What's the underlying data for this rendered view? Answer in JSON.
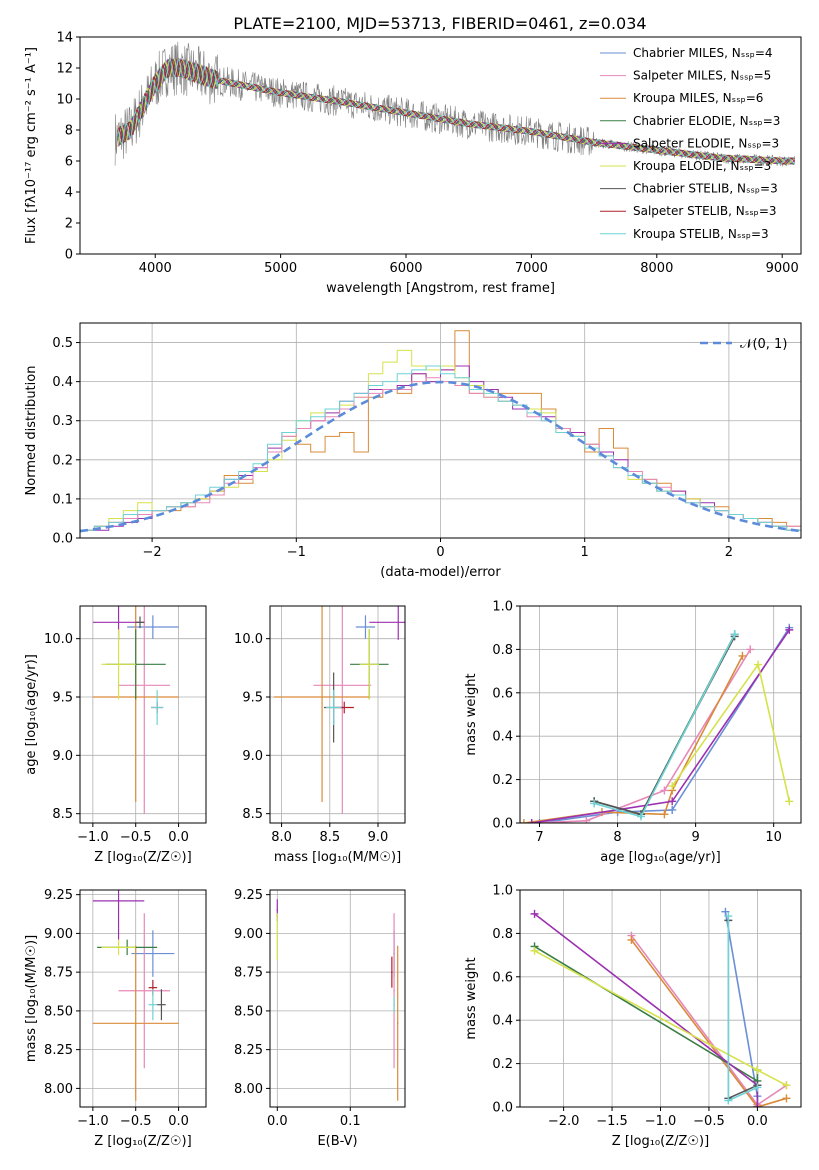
{
  "figure": {
    "title": "PLATE=2100, MJD=53713, FIBERID=0461, z=0.034"
  },
  "series_colors": {
    "Chabrier MILES": "#6a8fd6",
    "Salpeter MILES": "#e688b8",
    "Kroupa MILES": "#d98b3a",
    "Chabrier ELODIE": "#3a7d44",
    "Salpeter ELODIE": "#9b30b0",
    "Kroupa ELODIE": "#d6e24a",
    "Chabrier STELIB": "#555555",
    "Salpeter STELIB": "#b0202a",
    "Kroupa STELIB": "#6fd2d6"
  },
  "chart_data": [
    {
      "id": "spectrum",
      "type": "line",
      "title": "PLATE=2100, MJD=53713, FIBERID=0461, z=0.034",
      "xlabel": "wavelength [Angstrom, rest frame]",
      "ylabel": "Flux [fλ10⁻¹⁷ erg cm⁻² s⁻¹ A⁻¹]",
      "xlim": [
        3400,
        9150
      ],
      "ylim": [
        0,
        14
      ],
      "xticks": [
        4000,
        5000,
        6000,
        7000,
        8000,
        9000
      ],
      "yticks": [
        0,
        2,
        4,
        6,
        8,
        10,
        12,
        14
      ],
      "legend_position": "top-right",
      "legend": [
        "Chabrier MILES, N_SSP=4",
        "Salpeter MILES, N_SSP=5",
        "Kroupa MILES, N_SSP=6",
        "Chabrier ELODIE, N_SSP=3",
        "Salpeter ELODIE, N_SSP=3",
        "Kroupa ELODIE, N_SSP=3",
        "Chabrier STELIB, N_SSP=3",
        "Salpeter STELIB, N_SSP=3",
        "Kroupa STELIB, N_SSP=3"
      ],
      "model_trend": {
        "x": [
          3700,
          3800,
          3900,
          4000,
          4100,
          4200,
          4500,
          5000,
          5500,
          6000,
          6500,
          7000,
          7500,
          8000,
          8500,
          9000
        ],
        "y": [
          7.5,
          8.0,
          9.5,
          11.0,
          12.0,
          12.0,
          11.2,
          10.4,
          9.8,
          9.1,
          8.4,
          7.9,
          7.2,
          6.7,
          6.2,
          6.0
        ]
      }
    },
    {
      "id": "residuals",
      "type": "bar",
      "xlabel": "(data-model)/error",
      "ylabel": "Normed distribution",
      "xlim": [
        -2.5,
        2.5
      ],
      "ylim": [
        0,
        0.55
      ],
      "xticks": [
        -2,
        -1,
        0,
        1,
        2
      ],
      "yticks": [
        0.0,
        0.1,
        0.2,
        0.3,
        0.4,
        0.5
      ],
      "grid": true,
      "legend_position": "top-right",
      "legend": [
        "𝒩(0, 1)"
      ],
      "bin_edges": [
        -2.5,
        -2.4,
        -2.3,
        -2.2,
        -2.1,
        -2.0,
        -1.9,
        -1.8,
        -1.7,
        -1.6,
        -1.5,
        -1.4,
        -1.3,
        -1.2,
        -1.1,
        -1.0,
        -0.9,
        -0.8,
        -0.7,
        -0.6,
        -0.5,
        -0.4,
        -0.3,
        -0.2,
        -0.1,
        0.0,
        0.1,
        0.2,
        0.3,
        0.4,
        0.5,
        0.6,
        0.7,
        0.8,
        0.9,
        1.0,
        1.1,
        1.2,
        1.3,
        1.4,
        1.5,
        1.6,
        1.7,
        1.8,
        1.9,
        2.0,
        2.1,
        2.2,
        2.3,
        2.4,
        2.5
      ],
      "series": [
        {
          "name": "Kroupa MILES",
          "values": [
            0.02,
            0.03,
            0.04,
            0.05,
            0.06,
            0.07,
            0.07,
            0.08,
            0.1,
            0.12,
            0.16,
            0.14,
            0.17,
            0.22,
            0.26,
            0.24,
            0.22,
            0.26,
            0.27,
            0.22,
            0.36,
            0.38,
            0.37,
            0.42,
            0.4,
            0.43,
            0.53,
            0.37,
            0.38,
            0.37,
            0.37,
            0.37,
            0.33,
            0.28,
            0.27,
            0.22,
            0.28,
            0.23,
            0.16,
            0.15,
            0.14,
            0.12,
            0.1,
            0.08,
            0.08,
            0.06,
            0.05,
            0.05,
            0.04,
            0.03
          ]
        },
        {
          "name": "Salpeter ELODIE",
          "values": [
            0.02,
            0.02,
            0.03,
            0.04,
            0.05,
            0.07,
            0.08,
            0.09,
            0.1,
            0.12,
            0.15,
            0.16,
            0.18,
            0.23,
            0.27,
            0.28,
            0.3,
            0.32,
            0.35,
            0.37,
            0.38,
            0.38,
            0.39,
            0.42,
            0.4,
            0.43,
            0.44,
            0.4,
            0.38,
            0.36,
            0.33,
            0.33,
            0.31,
            0.28,
            0.27,
            0.24,
            0.22,
            0.2,
            0.16,
            0.14,
            0.12,
            0.12,
            0.1,
            0.09,
            0.07,
            0.06,
            0.05,
            0.04,
            0.03,
            0.02
          ]
        },
        {
          "name": "Kroupa ELODIE",
          "values": [
            0.02,
            0.03,
            0.05,
            0.07,
            0.09,
            0.07,
            0.08,
            0.09,
            0.1,
            0.12,
            0.13,
            0.15,
            0.17,
            0.2,
            0.25,
            0.3,
            0.32,
            0.33,
            0.34,
            0.36,
            0.42,
            0.45,
            0.48,
            0.44,
            0.43,
            0.44,
            0.41,
            0.39,
            0.36,
            0.35,
            0.34,
            0.33,
            0.32,
            0.27,
            0.26,
            0.24,
            0.21,
            0.18,
            0.15,
            0.14,
            0.12,
            0.11,
            0.1,
            0.08,
            0.07,
            0.06,
            0.05,
            0.04,
            0.03,
            0.02
          ]
        },
        {
          "name": "Salpeter MILES",
          "values": [
            0.02,
            0.03,
            0.04,
            0.05,
            0.06,
            0.07,
            0.08,
            0.08,
            0.09,
            0.11,
            0.14,
            0.15,
            0.18,
            0.22,
            0.26,
            0.28,
            0.3,
            0.31,
            0.33,
            0.36,
            0.37,
            0.38,
            0.38,
            0.4,
            0.41,
            0.4,
            0.39,
            0.37,
            0.36,
            0.35,
            0.34,
            0.31,
            0.3,
            0.28,
            0.26,
            0.24,
            0.21,
            0.18,
            0.17,
            0.15,
            0.13,
            0.11,
            0.09,
            0.08,
            0.07,
            0.06,
            0.05,
            0.04,
            0.03,
            0.03
          ]
        },
        {
          "name": "Kroupa STELIB",
          "values": [
            0.02,
            0.03,
            0.04,
            0.06,
            0.07,
            0.07,
            0.08,
            0.09,
            0.11,
            0.13,
            0.15,
            0.17,
            0.19,
            0.24,
            0.27,
            0.3,
            0.31,
            0.33,
            0.35,
            0.37,
            0.39,
            0.4,
            0.42,
            0.43,
            0.44,
            0.42,
            0.41,
            0.38,
            0.37,
            0.35,
            0.34,
            0.32,
            0.3,
            0.27,
            0.26,
            0.23,
            0.21,
            0.18,
            0.16,
            0.14,
            0.12,
            0.11,
            0.09,
            0.08,
            0.07,
            0.06,
            0.05,
            0.04,
            0.03,
            0.02
          ]
        }
      ],
      "normal_curve": {
        "name": "𝒩(0, 1)",
        "mu": 0,
        "sigma": 1
      }
    },
    {
      "id": "age-vs-Z",
      "type": "scatter",
      "xlabel": "Z [log₁₀(Z/Z☉)]",
      "ylabel": "age  [log₁₀(age/yr)]",
      "xlim": [
        -1.15,
        0.32
      ],
      "ylim": [
        8.42,
        10.28
      ],
      "xticks": [
        -1.0,
        -0.5,
        0.0
      ],
      "yticks": [
        8.5,
        9.0,
        9.5,
        10.0
      ],
      "grid": true,
      "points": [
        {
          "series": "Chabrier MILES",
          "x": -0.3,
          "y": 10.1,
          "xerr": 0.3,
          "yerr": 0.1
        },
        {
          "series": "Salpeter MILES",
          "x": -0.4,
          "y": 9.6,
          "xerr": 0.3,
          "yerr": 1.1
        },
        {
          "series": "Kroupa MILES",
          "x": -0.5,
          "y": 9.5,
          "xerr": 0.5,
          "yerr": 0.9
        },
        {
          "series": "Chabrier ELODIE",
          "x": -0.5,
          "y": 9.78,
          "xerr": 0.35,
          "yerr": 0.3
        },
        {
          "series": "Salpeter ELODIE",
          "x": -0.7,
          "y": 10.14,
          "xerr": 0.3,
          "yerr": 0.15
        },
        {
          "series": "Kroupa ELODIE",
          "x": -0.7,
          "y": 9.78,
          "xerr": 0.2,
          "yerr": 0.3
        },
        {
          "series": "Chabrier STELIB",
          "x": -0.45,
          "y": 10.14,
          "xerr": 0.05,
          "yerr": 0.05
        },
        {
          "series": "Salpeter STELIB",
          "x": -0.25,
          "y": 9.41,
          "xerr": 0.07,
          "yerr": 0.05
        },
        {
          "series": "Kroupa STELIB",
          "x": -0.25,
          "y": 9.41,
          "xerr": 0.07,
          "yerr": 0.15
        }
      ]
    },
    {
      "id": "age-vs-mass",
      "type": "scatter",
      "xlabel": "mass [log₁₀(M/M☉)]",
      "ylabel": "",
      "xlim": [
        7.88,
        9.28
      ],
      "ylim": [
        8.42,
        10.28
      ],
      "xticks": [
        8.0,
        8.5,
        9.0
      ],
      "yticks": [
        8.5,
        9.0,
        9.5,
        10.0
      ],
      "grid": true,
      "points": [
        {
          "series": "Chabrier MILES",
          "x": 8.87,
          "y": 10.1,
          "xerr": 0.1,
          "yerr": 0.1
        },
        {
          "series": "Salpeter MILES",
          "x": 8.63,
          "y": 9.6,
          "xerr": 0.3,
          "yerr": 1.1
        },
        {
          "series": "Kroupa MILES",
          "x": 8.42,
          "y": 9.5,
          "xerr": 0.5,
          "yerr": 0.9
        },
        {
          "series": "Chabrier ELODIE",
          "x": 8.91,
          "y": 9.78,
          "xerr": 0.2,
          "yerr": 0.3
        },
        {
          "series": "Salpeter ELODIE",
          "x": 9.21,
          "y": 10.14,
          "xerr": 0.3,
          "yerr": 0.15
        },
        {
          "series": "Kroupa ELODIE",
          "x": 8.91,
          "y": 9.78,
          "xerr": 0.1,
          "yerr": 0.3
        },
        {
          "series": "Chabrier STELIB",
          "x": 8.54,
          "y": 9.41,
          "xerr": 0.1,
          "yerr": 0.3
        },
        {
          "series": "Salpeter STELIB",
          "x": 8.65,
          "y": 9.41,
          "xerr": 0.1,
          "yerr": 0.05
        },
        {
          "series": "Kroupa STELIB",
          "x": 8.54,
          "y": 9.41,
          "xerr": 0.08,
          "yerr": 0.15
        }
      ]
    },
    {
      "id": "weight-vs-age",
      "type": "line",
      "xlabel": "age  [log₁₀(age/yr)]",
      "ylabel": "mass weight",
      "xlim": [
        6.75,
        10.35
      ],
      "ylim": [
        0,
        1.0
      ],
      "xticks": [
        7,
        8,
        9,
        10
      ],
      "yticks": [
        0.0,
        0.2,
        0.4,
        0.6,
        0.8,
        1.0
      ],
      "grid": true,
      "series": [
        {
          "name": "Chabrier MILES",
          "x": [
            7.0,
            8.0,
            8.7,
            10.2
          ],
          "y": [
            0.0,
            0.05,
            0.06,
            0.9
          ]
        },
        {
          "name": "Salpeter MILES",
          "x": [
            6.9,
            7.6,
            8.6,
            9.7
          ],
          "y": [
            0.0,
            0.01,
            0.15,
            0.8
          ]
        },
        {
          "name": "Kroupa MILES",
          "x": [
            6.8,
            7.8,
            8.6,
            8.7,
            9.6
          ],
          "y": [
            0.0,
            0.05,
            0.04,
            0.15,
            0.77
          ]
        },
        {
          "name": "Chabrier ELODIE",
          "x": [
            7.7,
            8.3,
            9.5
          ],
          "y": [
            0.1,
            0.04,
            0.87
          ]
        },
        {
          "name": "Salpeter ELODIE",
          "x": [
            6.9,
            8.7,
            10.2
          ],
          "y": [
            0.0,
            0.1,
            0.89
          ]
        },
        {
          "name": "Kroupa ELODIE",
          "x": [
            8.7,
            9.8,
            10.2
          ],
          "y": [
            0.17,
            0.73,
            0.1
          ]
        },
        {
          "name": "Chabrier STELIB",
          "x": [
            7.7,
            8.3,
            9.5
          ],
          "y": [
            0.1,
            0.04,
            0.86
          ]
        },
        {
          "name": "Kroupa STELIB",
          "x": [
            7.7,
            8.3,
            9.5
          ],
          "y": [
            0.09,
            0.03,
            0.87
          ]
        }
      ]
    },
    {
      "id": "mass-vs-Z",
      "type": "scatter",
      "xlabel": "Z [log₁₀(Z/Z☉)]",
      "ylabel": "mass [log₁₀(M/M☉)]",
      "xlim": [
        -1.15,
        0.32
      ],
      "ylim": [
        7.88,
        9.28
      ],
      "xticks": [
        -1.0,
        -0.5,
        0.0
      ],
      "yticks": [
        8.0,
        8.25,
        8.5,
        8.75,
        9.0,
        9.25
      ],
      "grid": true,
      "points": [
        {
          "series": "Chabrier MILES",
          "x": -0.3,
          "y": 8.87,
          "xerr": 0.25,
          "yerr": 0.15
        },
        {
          "series": "Salpeter MILES",
          "x": -0.4,
          "y": 8.63,
          "xerr": 0.3,
          "yerr": 0.5
        },
        {
          "series": "Kroupa MILES",
          "x": -0.5,
          "y": 8.42,
          "xerr": 0.5,
          "yerr": 0.5
        },
        {
          "series": "Chabrier ELODIE",
          "x": -0.6,
          "y": 8.91,
          "xerr": 0.35,
          "yerr": 0.05
        },
        {
          "series": "Salpeter ELODIE",
          "x": -0.7,
          "y": 9.21,
          "xerr": 0.3,
          "yerr": 0.25
        },
        {
          "series": "Kroupa ELODIE",
          "x": -0.7,
          "y": 8.91,
          "xerr": 0.2,
          "yerr": 0.05
        },
        {
          "series": "Chabrier STELIB",
          "x": -0.2,
          "y": 8.54,
          "xerr": 0.05,
          "yerr": 0.1
        },
        {
          "series": "Salpeter STELIB",
          "x": -0.3,
          "y": 8.65,
          "xerr": 0.05,
          "yerr": 0.05
        },
        {
          "series": "Kroupa STELIB",
          "x": -0.3,
          "y": 8.54,
          "xerr": 0.05,
          "yerr": 0.1
        }
      ]
    },
    {
      "id": "mass-vs-ebv",
      "type": "scatter",
      "xlabel": "E(B-V)",
      "ylabel": "",
      "xlim": [
        -0.01,
        0.175
      ],
      "ylim": [
        7.88,
        9.28
      ],
      "xticks": [
        0.0,
        0.1
      ],
      "yticks": [
        8.0,
        8.25,
        8.5,
        8.75,
        9.0,
        9.25
      ],
      "grid": true,
      "points": [
        {
          "series": "Chabrier MILES",
          "x": 0.16,
          "y": 8.87,
          "xerr": 0.001,
          "yerr": 0.15
        },
        {
          "series": "Salpeter MILES",
          "x": 0.16,
          "y": 8.63,
          "xerr": 0.001,
          "yerr": 0.5
        },
        {
          "series": "Kroupa MILES",
          "x": 0.165,
          "y": 8.42,
          "xerr": 0.001,
          "yerr": 0.5
        },
        {
          "series": "Salpeter ELODIE",
          "x": 0.0,
          "y": 9.15,
          "xerr": 0.001,
          "yerr": 0.07
        },
        {
          "series": "Kroupa ELODIE",
          "x": 0.0,
          "y": 8.98,
          "xerr": 0.001,
          "yerr": 0.15
        },
        {
          "series": "Salpeter STELIB",
          "x": 0.157,
          "y": 8.75,
          "xerr": 0.001,
          "yerr": 0.1
        },
        {
          "series": "Kroupa STELIB",
          "x": 0.16,
          "y": 8.54,
          "xerr": 0.001,
          "yerr": 0.05
        }
      ]
    },
    {
      "id": "weight-vs-Z",
      "type": "line",
      "xlabel": "Z [log₁₀(Z/Z☉)]",
      "ylabel": "mass weight",
      "xlim": [
        -2.45,
        0.45
      ],
      "ylim": [
        0,
        1.0
      ],
      "xticks": [
        -2.0,
        -1.5,
        -1.0,
        -0.5,
        0.0
      ],
      "yticks": [
        0.0,
        0.2,
        0.4,
        0.6,
        0.8,
        1.0
      ],
      "grid": true,
      "series": [
        {
          "name": "Chabrier MILES",
          "x": [
            -0.33,
            0.0,
            0.0
          ],
          "y": [
            0.9,
            0.05,
            0.0
          ]
        },
        {
          "name": "Salpeter MILES",
          "x": [
            -1.3,
            0.0,
            0.3
          ],
          "y": [
            0.79,
            0.01,
            0.1
          ]
        },
        {
          "name": "Kroupa MILES",
          "x": [
            -1.3,
            0.0,
            0.3
          ],
          "y": [
            0.77,
            0.0,
            0.04
          ]
        },
        {
          "name": "Chabrier ELODIE",
          "x": [
            -2.3,
            0.0,
            0.0
          ],
          "y": [
            0.74,
            0.12,
            0.17
          ]
        },
        {
          "name": "Salpeter ELODIE",
          "x": [
            -2.3,
            0.0,
            0.0
          ],
          "y": [
            0.89,
            0.1,
            0.0
          ]
        },
        {
          "name": "Kroupa ELODIE",
          "x": [
            -2.3,
            0.0,
            0.3
          ],
          "y": [
            0.72,
            0.17,
            0.1
          ]
        },
        {
          "name": "Chabrier STELIB",
          "x": [
            -0.3,
            -0.3,
            0.0
          ],
          "y": [
            0.86,
            0.04,
            0.1
          ]
        },
        {
          "name": "Kroupa STELIB",
          "x": [
            -0.3,
            -0.3,
            0.0
          ],
          "y": [
            0.88,
            0.03,
            0.09
          ]
        }
      ]
    }
  ]
}
